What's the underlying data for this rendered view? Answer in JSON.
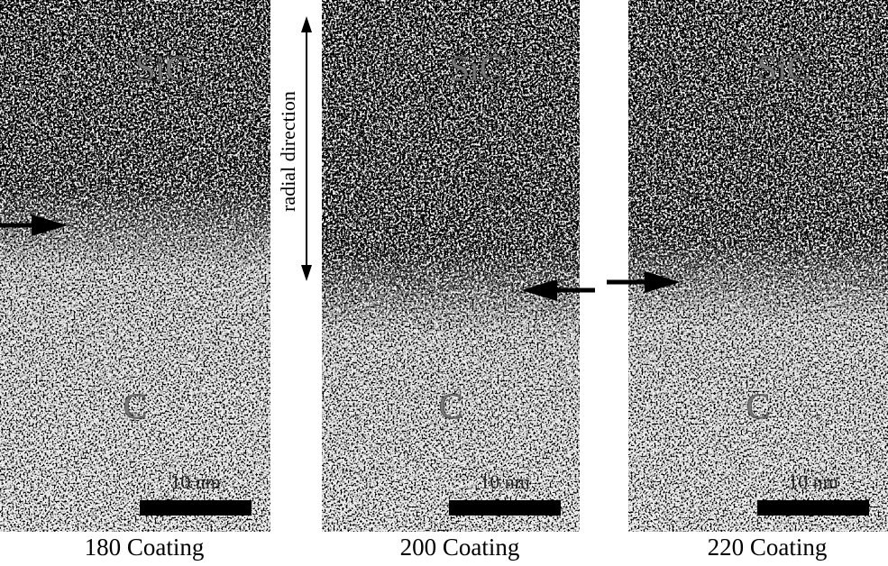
{
  "figure": {
    "axis_label": "radial direction",
    "panels": [
      {
        "top_label": "SiC",
        "bottom_label": "C",
        "scale_bar": "10 nm",
        "caption": "180 Coating"
      },
      {
        "top_label": "SiC",
        "bottom_label": "C",
        "scale_bar": "10 nm",
        "caption": "200 Coating"
      },
      {
        "top_label": "SiC",
        "bottom_label": "C",
        "scale_bar": "10 nm",
        "caption": "220 Coating"
      }
    ]
  }
}
